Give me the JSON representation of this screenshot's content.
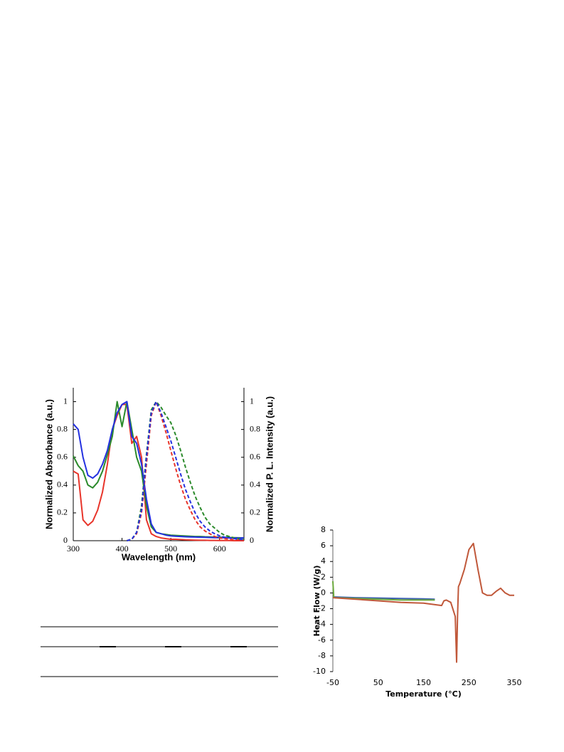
{
  "chart_data": [
    {
      "type": "line",
      "x_label": "Wavelength (nm)",
      "y_label": "Normalized Absorbance (a.u.)",
      "y2_label": "Normalized P. L. Intensity (a.u.)",
      "xlim": [
        300,
        650
      ],
      "xticks": [
        300,
        400,
        500,
        600
      ],
      "ylim": [
        0,
        1.1
      ],
      "yticks": [
        0,
        0.2,
        0.4,
        0.6,
        0.8,
        1
      ],
      "y2lim": [
        0,
        1.1
      ],
      "y2ticks": [
        0,
        0.2,
        0.4,
        0.6,
        0.8,
        1
      ],
      "x": [
        300,
        310,
        320,
        330,
        340,
        350,
        360,
        370,
        380,
        390,
        400,
        410,
        420,
        430,
        440,
        450,
        460,
        470,
        480,
        490,
        500,
        510,
        520,
        530,
        540,
        550,
        560,
        570,
        580,
        590,
        600,
        610,
        620,
        630,
        640,
        650
      ],
      "series": [
        {
          "color": "#e8342a",
          "line_style": "solid",
          "values": [
            0.5,
            0.48,
            0.15,
            0.11,
            0.14,
            0.22,
            0.35,
            0.55,
            0.8,
            0.9,
            0.98,
            0.98,
            0.7,
            0.75,
            0.6,
            0.15,
            0.05,
            0.03,
            0.02,
            0.015,
            0.01,
            0.01,
            0.008,
            0.006,
            0.005,
            0.004,
            0.003,
            0.003,
            0.002,
            0.002,
            0.001,
            0.001,
            0.001,
            0,
            0,
            0
          ]
        },
        {
          "color": "#2b8a2b",
          "line_style": "solid",
          "values": [
            0.61,
            0.54,
            0.5,
            0.4,
            0.38,
            0.42,
            0.5,
            0.62,
            0.75,
            1.0,
            0.82,
            1.0,
            0.8,
            0.6,
            0.5,
            0.25,
            0.1,
            0.06,
            0.05,
            0.045,
            0.04,
            0.038,
            0.036,
            0.034,
            0.032,
            0.03,
            0.03,
            0.028,
            0.027,
            0.026,
            0.025,
            0.024,
            0.023,
            0.022,
            0.021,
            0.02
          ]
        },
        {
          "color": "#2431e0",
          "line_style": "solid",
          "values": [
            0.84,
            0.8,
            0.6,
            0.47,
            0.45,
            0.48,
            0.55,
            0.65,
            0.8,
            0.92,
            0.98,
            1.0,
            0.75,
            0.7,
            0.55,
            0.3,
            0.12,
            0.06,
            0.05,
            0.04,
            0.035,
            0.032,
            0.03,
            0.028,
            0.027,
            0.026,
            0.025,
            0.024,
            0.023,
            0.022,
            0.022,
            0.021,
            0.021,
            0.02,
            0.02,
            0.02
          ]
        },
        {
          "color": "#e8342a",
          "line_style": "dashed",
          "axis": "y2",
          "values": [
            null,
            null,
            null,
            null,
            null,
            null,
            null,
            null,
            null,
            null,
            null,
            0,
            0.01,
            0.05,
            0.2,
            0.55,
            0.9,
            1.0,
            0.9,
            0.78,
            0.65,
            0.52,
            0.4,
            0.3,
            0.22,
            0.15,
            0.1,
            0.07,
            0.05,
            0.03,
            0.02,
            0.015,
            0.01,
            0.008,
            0.005,
            0.003
          ]
        },
        {
          "color": "#2b8a2b",
          "line_style": "dashed",
          "axis": "y2",
          "values": [
            null,
            null,
            null,
            null,
            null,
            null,
            null,
            null,
            null,
            null,
            null,
            0,
            0.01,
            0.06,
            0.25,
            0.62,
            0.94,
            1.0,
            0.96,
            0.9,
            0.85,
            0.76,
            0.65,
            0.53,
            0.42,
            0.32,
            0.24,
            0.17,
            0.12,
            0.09,
            0.06,
            0.04,
            0.03,
            0.02,
            0.015,
            0.01
          ]
        },
        {
          "color": "#2431e0",
          "line_style": "dashed",
          "axis": "y2",
          "values": [
            null,
            null,
            null,
            null,
            null,
            null,
            null,
            null,
            null,
            null,
            null,
            0,
            0.01,
            0.06,
            0.22,
            0.6,
            0.92,
            1.0,
            0.92,
            0.82,
            0.72,
            0.6,
            0.48,
            0.37,
            0.28,
            0.2,
            0.14,
            0.1,
            0.07,
            0.05,
            0.035,
            0.025,
            0.02,
            0.015,
            0.01,
            0.008
          ]
        }
      ]
    },
    {
      "type": "line",
      "x_label": "Temperature (°C)",
      "y_label": "Heat Flow (W/g)",
      "xlim": [
        -50,
        350
      ],
      "xticks": [
        -50,
        50,
        150,
        250,
        350
      ],
      "ylim": [
        -10,
        8
      ],
      "yticks": [
        -10,
        -8,
        -6,
        -4,
        -2,
        0,
        2,
        4,
        6,
        8
      ],
      "series": [
        {
          "color": "#3b5fb0",
          "line_style": "solid",
          "x": [
            -50,
            0,
            50,
            100,
            150,
            175
          ],
          "values": [
            -0.5,
            -0.6,
            -0.65,
            -0.7,
            -0.75,
            -0.8
          ]
        },
        {
          "color": "#6aa83c",
          "line_style": "solid",
          "x": [
            -50,
            -48,
            -45,
            0,
            50,
            100,
            150,
            175
          ],
          "values": [
            1.5,
            -0.5,
            -0.6,
            -0.7,
            -0.8,
            -0.9,
            -0.9,
            -0.9
          ]
        },
        {
          "color": "#c0583a",
          "line_style": "solid",
          "x": [
            -50,
            0,
            50,
            100,
            150,
            190,
            195,
            200,
            210,
            220,
            223,
            225,
            227,
            230,
            240,
            250,
            260,
            270,
            280,
            290,
            300,
            310,
            320,
            330,
            340,
            350
          ],
          "values": [
            -0.6,
            -0.8,
            -1.0,
            -1.2,
            -1.3,
            -1.6,
            -1.0,
            -0.9,
            -1.2,
            -3,
            -8.8,
            -3,
            0.8,
            1.2,
            3,
            5.5,
            6.3,
            3,
            0,
            -0.3,
            -0.3,
            0.2,
            0.6,
            0,
            -0.3,
            -0.3
          ]
        }
      ]
    }
  ]
}
